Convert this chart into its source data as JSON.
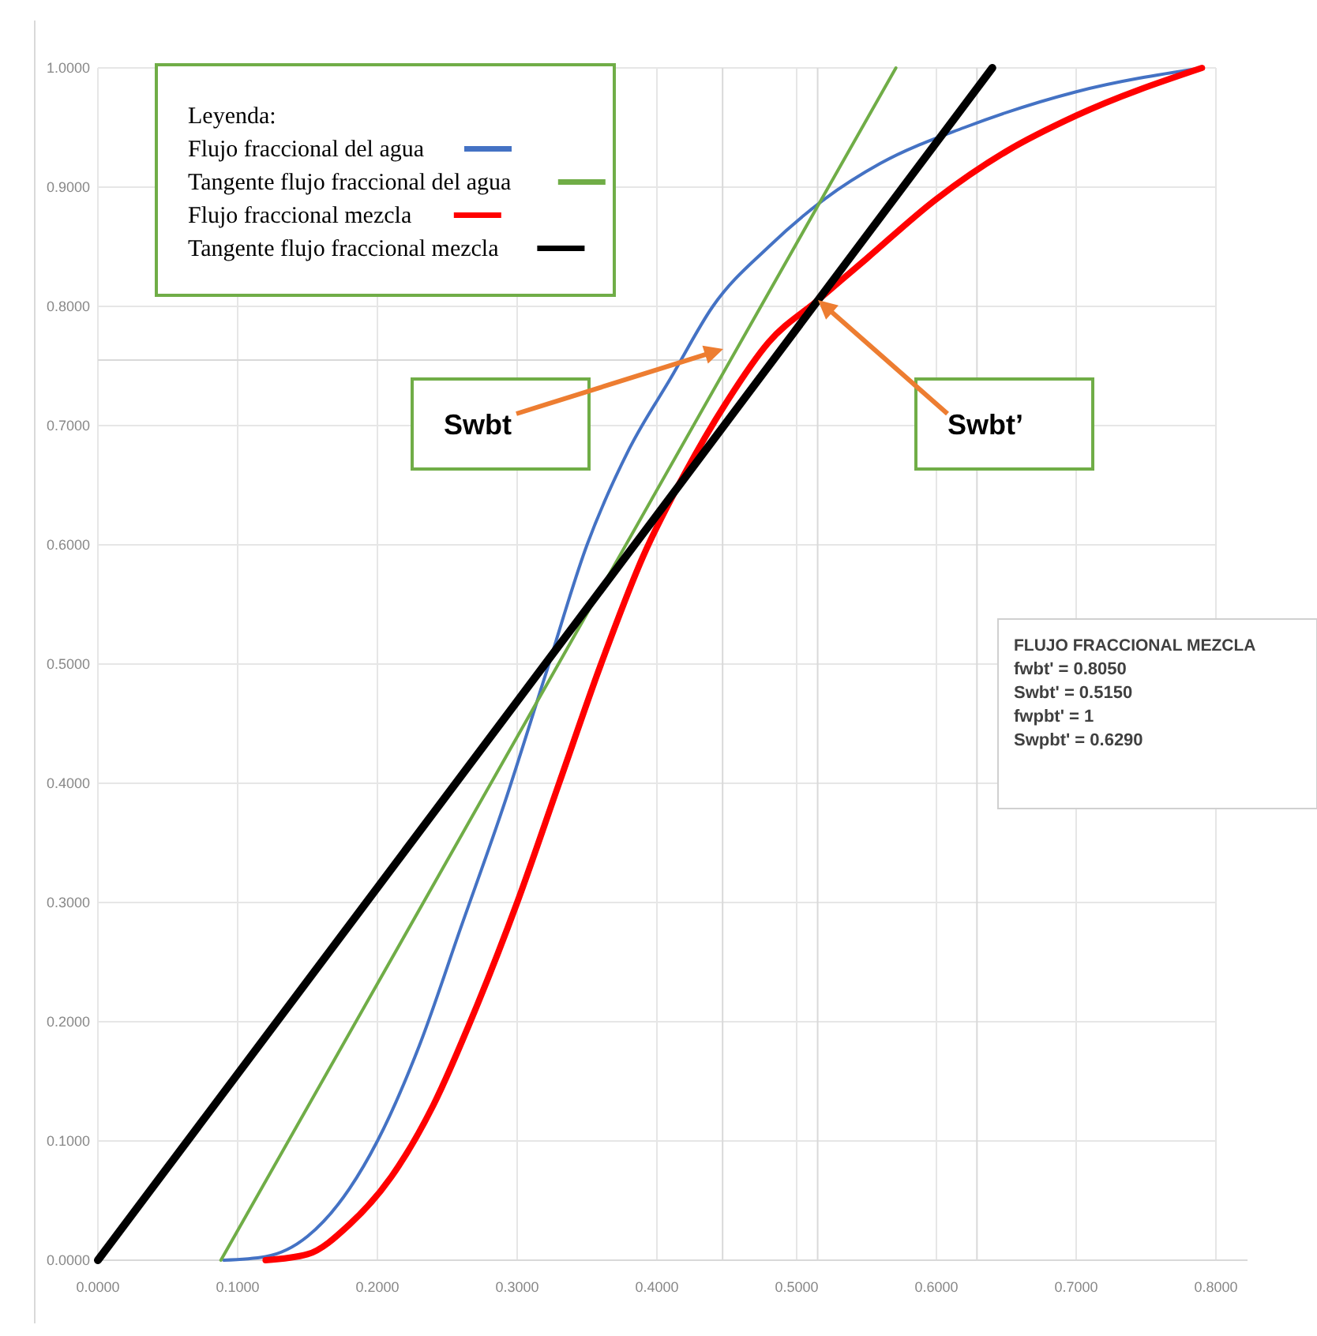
{
  "chart_data": {
    "type": "line",
    "legend_title": "Leyenda:",
    "legend": "top left",
    "grid": true,
    "xlim": [
      0,
      0.8
    ],
    "ylim": [
      0,
      1
    ],
    "xticks": [
      {
        "value": 0,
        "label": "0.0000"
      },
      {
        "value": 0.1,
        "label": "0.1000"
      },
      {
        "value": 0.2,
        "label": "0.2000"
      },
      {
        "value": 0.3,
        "label": "0.3000"
      },
      {
        "value": 0.4,
        "label": "0.4000"
      },
      {
        "value": 0.5,
        "label": "0.5000"
      },
      {
        "value": 0.6,
        "label": "0.6000"
      },
      {
        "value": 0.7,
        "label": "0.7000"
      },
      {
        "value": 0.8,
        "label": "0.8000"
      }
    ],
    "yticks": [
      {
        "value": 0,
        "label": "0.0000"
      },
      {
        "value": 0.1,
        "label": "0.1000"
      },
      {
        "value": 0.2,
        "label": "0.2000"
      },
      {
        "value": 0.3,
        "label": "0.3000"
      },
      {
        "value": 0.4,
        "label": "0.4000"
      },
      {
        "value": 0.5,
        "label": "0.5000"
      },
      {
        "value": 0.6,
        "label": "0.6000"
      },
      {
        "value": 0.7,
        "label": "0.7000"
      },
      {
        "value": 0.8,
        "label": "0.8000"
      },
      {
        "value": 0.9,
        "label": "0.9000"
      },
      {
        "value": 1,
        "label": "1.0000"
      }
    ],
    "series": [
      {
        "name": "Flujo fraccional del agua",
        "color": "#4472c4",
        "x": [
          0.09,
          0.12,
          0.15,
          0.18,
          0.2,
          0.23,
          0.26,
          0.29,
          0.32,
          0.35,
          0.38,
          0.41,
          0.44,
          0.48,
          0.52,
          0.56,
          0.62,
          0.7,
          0.79
        ],
        "values": [
          0,
          0.003,
          0.02,
          0.06,
          0.1,
          0.18,
          0.28,
          0.38,
          0.49,
          0.6,
          0.68,
          0.74,
          0.8,
          0.85,
          0.89,
          0.92,
          0.95,
          0.98,
          1
        ]
      },
      {
        "name": "Tangente flujo fraccional del agua",
        "color": "#70ad47",
        "x": [
          0.088,
          0.571
        ],
        "values": [
          0,
          1
        ]
      },
      {
        "name": "Flujo fraccional  mezcla",
        "color": "#ff0000",
        "x": [
          0.12,
          0.15,
          0.18,
          0.21,
          0.24,
          0.27,
          0.3,
          0.33,
          0.36,
          0.39,
          0.42,
          0.45,
          0.48,
          0.515,
          0.55,
          0.6,
          0.65,
          0.7,
          0.79
        ],
        "values": [
          0,
          0.005,
          0.03,
          0.07,
          0.13,
          0.21,
          0.3,
          0.4,
          0.5,
          0.59,
          0.66,
          0.72,
          0.77,
          0.805,
          0.84,
          0.89,
          0.93,
          0.96,
          1
        ]
      },
      {
        "name": "Tangente flujo fraccional mezcla",
        "color": "#000000",
        "x": [
          0,
          0.64
        ],
        "values": [
          0,
          1
        ]
      }
    ],
    "ref_lines": [
      {
        "axis": "x",
        "value": 0.447,
        "color": "#d9d9d9"
      },
      {
        "axis": "x",
        "value": 0.515,
        "color": "#d9d9d9"
      },
      {
        "axis": "x",
        "value": 0.629,
        "color": "#d9d9d9"
      },
      {
        "axis": "y",
        "value": 0.755,
        "color": "#d9d9d9"
      }
    ],
    "annotations": [
      "Swbt",
      "Swbt’",
      "FLUJO FRACCIONAL MEZCLA",
      "fwbt' = 0.8050",
      "Swbt' = 0.5150",
      "fwpbt' = 1",
      "Swpbt' = 0.6290"
    ]
  }
}
